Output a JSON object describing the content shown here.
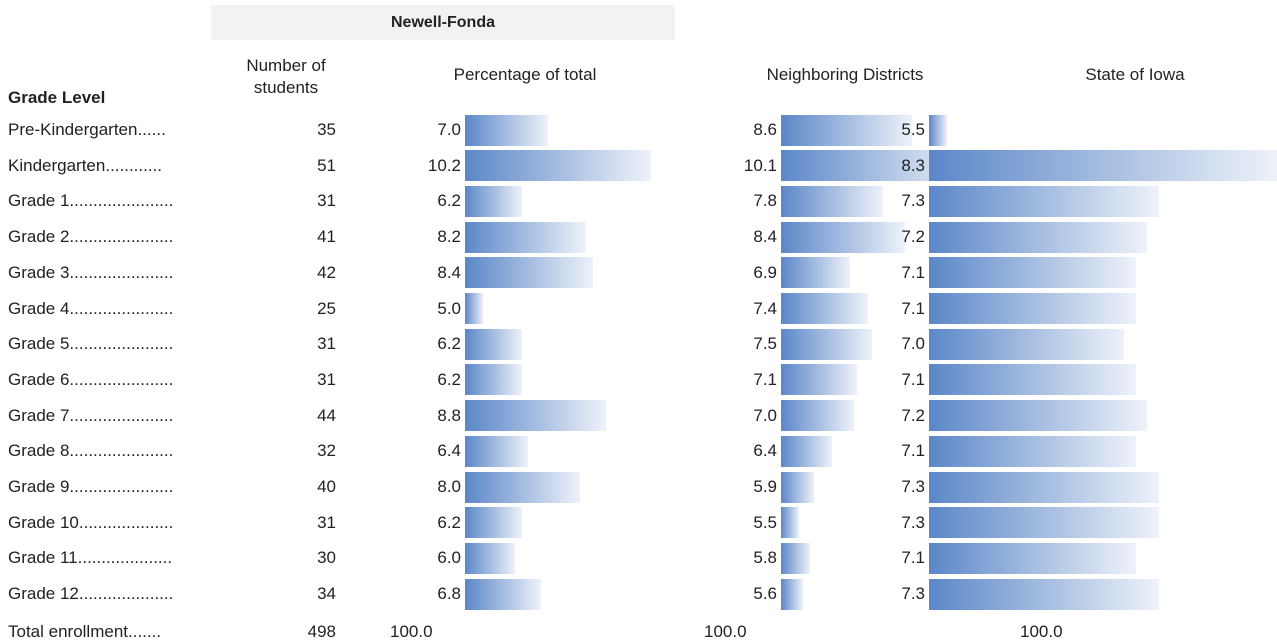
{
  "header": {
    "group": "Newell-Fonda"
  },
  "table": {
    "columns": [
      "Grade Level",
      "Number of students",
      "Percentage of total",
      "Neighboring Districts",
      "State of Iowa"
    ],
    "rows": [
      [
        "Pre-Kindergarten......",
        "35",
        "7.0",
        "8.6",
        "5.5"
      ],
      [
        "Kindergarten............",
        "51",
        "10.2",
        "10.1",
        "8.3"
      ],
      [
        "Grade 1......................",
        "31",
        "6.2",
        "7.8",
        "7.3"
      ],
      [
        "Grade 2......................",
        "41",
        "8.2",
        "8.4",
        "7.2"
      ],
      [
        "Grade 3......................",
        "42",
        "8.4",
        "6.9",
        "7.1"
      ],
      [
        "Grade 4......................",
        "25",
        "5.0",
        "7.4",
        "7.1"
      ],
      [
        "Grade 5......................",
        "31",
        "6.2",
        "7.5",
        "7.0"
      ],
      [
        "Grade 6......................",
        "31",
        "6.2",
        "7.1",
        "7.1"
      ],
      [
        "Grade 7......................",
        "44",
        "8.8",
        "7.0",
        "7.2"
      ],
      [
        "Grade 8......................",
        "32",
        "6.4",
        "6.4",
        "7.1"
      ],
      [
        "Grade 9......................",
        "40",
        "8.0",
        "5.9",
        "7.3"
      ],
      [
        "Grade 10....................",
        "31",
        "6.2",
        "5.5",
        "7.3"
      ],
      [
        "Grade 11....................",
        "30",
        "6.0",
        "5.8",
        "7.1"
      ],
      [
        "Grade 12....................",
        "34",
        "6.8",
        "5.6",
        "7.3"
      ]
    ],
    "total": [
      "Total enrollment.......",
      "498",
      "100.0",
      "100.0",
      "100.0"
    ]
  }
}
